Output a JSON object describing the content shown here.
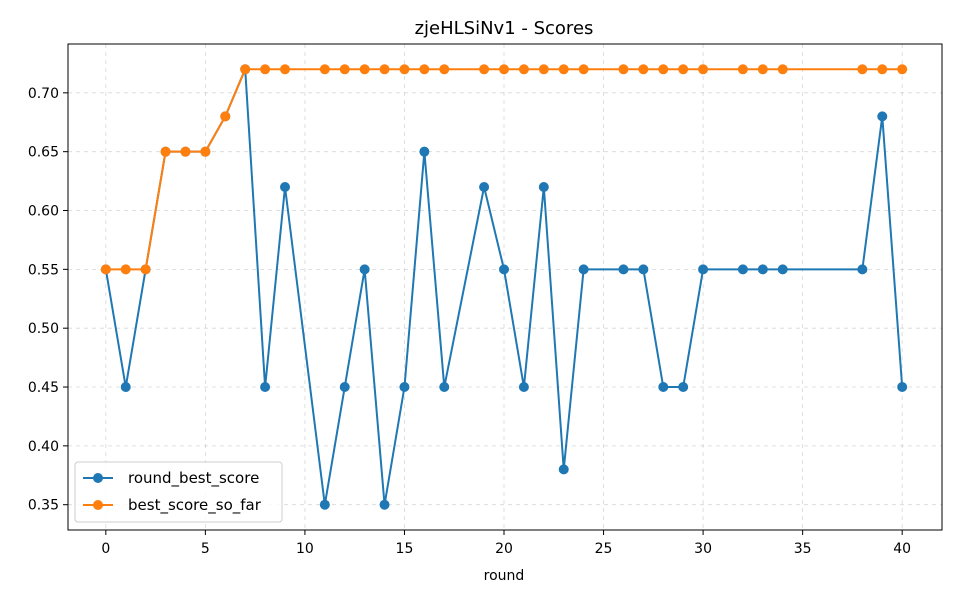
{
  "chart_data": {
    "type": "line",
    "title": "zjeHLSiNv1 - Scores",
    "xlabel": "round",
    "ylabel": "",
    "xlim": [
      -1.9,
      42
    ],
    "ylim": [
      0.3285,
      0.7415
    ],
    "xticks": [
      0,
      5,
      10,
      15,
      20,
      25,
      30,
      35,
      40
    ],
    "yticks": [
      0.35,
      0.4,
      0.45,
      0.5,
      0.55,
      0.6,
      0.65,
      0.7
    ],
    "grid": true,
    "legend_position": "lower-left",
    "series": [
      {
        "name": "round_best_score",
        "color": "#1f77b4",
        "x": [
          0,
          1,
          2,
          3,
          4,
          5,
          6,
          7,
          8,
          9,
          11,
          12,
          13,
          14,
          15,
          16,
          17,
          19,
          20,
          21,
          22,
          23,
          24,
          26,
          27,
          28,
          29,
          30,
          32,
          33,
          34,
          38,
          39,
          40
        ],
        "y": [
          0.55,
          0.45,
          0.55,
          0.65,
          0.65,
          0.65,
          0.68,
          0.72,
          0.45,
          0.62,
          0.35,
          0.45,
          0.55,
          0.35,
          0.45,
          0.65,
          0.45,
          0.62,
          0.55,
          0.45,
          0.62,
          0.38,
          0.55,
          0.55,
          0.55,
          0.45,
          0.45,
          0.55,
          0.55,
          0.55,
          0.55,
          0.55,
          0.68,
          0.45
        ]
      },
      {
        "name": "best_score_so_far",
        "color": "#ff7f0e",
        "x": [
          0,
          1,
          2,
          3,
          4,
          5,
          6,
          7,
          8,
          9,
          11,
          12,
          13,
          14,
          15,
          16,
          17,
          19,
          20,
          21,
          22,
          23,
          24,
          26,
          27,
          28,
          29,
          30,
          32,
          33,
          34,
          38,
          39,
          40
        ],
        "y": [
          0.55,
          0.55,
          0.55,
          0.65,
          0.65,
          0.65,
          0.68,
          0.72,
          0.72,
          0.72,
          0.72,
          0.72,
          0.72,
          0.72,
          0.72,
          0.72,
          0.72,
          0.72,
          0.72,
          0.72,
          0.72,
          0.72,
          0.72,
          0.72,
          0.72,
          0.72,
          0.72,
          0.72,
          0.72,
          0.72,
          0.72,
          0.72,
          0.72,
          0.72
        ]
      }
    ]
  }
}
